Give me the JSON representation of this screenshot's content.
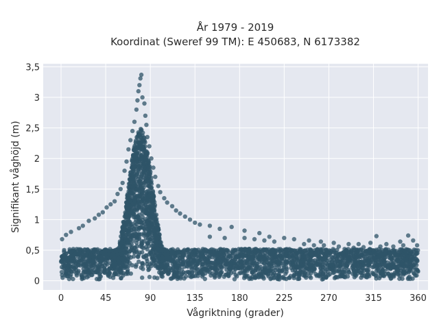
{
  "chart_data": {
    "type": "scatter",
    "title": "År 1979 - 2019",
    "subtitle": "Koordinat (Sweref 99 TM): E 450683, N 6173382",
    "xlabel": "Vågriktning (grader)",
    "ylabel": "Signifikant våghöjd (m)",
    "xlim": [
      -18,
      370
    ],
    "ylim": [
      -0.15,
      3.55
    ],
    "x_ticks": [
      0,
      45,
      90,
      135,
      180,
      225,
      270,
      315,
      360
    ],
    "x_tick_labels": [
      "0",
      "45",
      "90",
      "135",
      "180",
      "225",
      "270",
      "315",
      "360"
    ],
    "y_ticks": [
      0,
      0.5,
      1,
      1.5,
      2,
      2.5,
      3,
      3.5
    ],
    "y_tick_labels": [
      "0",
      "0,5",
      "1",
      "1,5",
      "2",
      "2,5",
      "3",
      "3,5"
    ],
    "grid": true,
    "plot_background": "#e5e8f0",
    "grid_color": "#ffffff",
    "marker_color": "#2f5468",
    "series": [
      {
        "points": [
          [
            81,
            3.37
          ],
          [
            80,
            3.31
          ],
          [
            79,
            3.2
          ],
          [
            78,
            3.1
          ],
          [
            82,
            3.0
          ],
          [
            77,
            2.95
          ],
          [
            84,
            2.9
          ],
          [
            76,
            2.8
          ],
          [
            85,
            2.7
          ],
          [
            74,
            2.6
          ],
          [
            86,
            2.55
          ],
          [
            72,
            2.45
          ],
          [
            87,
            2.35
          ],
          [
            70,
            2.3
          ],
          [
            89,
            2.2
          ],
          [
            68,
            2.15
          ],
          [
            91,
            2.0
          ],
          [
            66,
            1.95
          ],
          [
            93,
            1.85
          ],
          [
            64,
            1.8
          ],
          [
            95,
            1.7
          ],
          [
            62,
            1.6
          ],
          [
            98,
            1.55
          ],
          [
            60,
            1.5
          ],
          [
            100,
            1.45
          ],
          [
            57,
            1.42
          ],
          [
            104,
            1.35
          ],
          [
            54,
            1.3
          ],
          [
            107,
            1.28
          ],
          [
            50,
            1.25
          ],
          [
            112,
            1.22
          ],
          [
            46,
            1.2
          ],
          [
            116,
            1.15
          ],
          [
            42,
            1.12
          ],
          [
            120,
            1.1
          ],
          [
            38,
            1.08
          ],
          [
            125,
            1.05
          ],
          [
            34,
            1.02
          ],
          [
            130,
            1.0
          ],
          [
            28,
            0.98
          ],
          [
            135,
            0.95
          ],
          [
            22,
            0.9
          ],
          [
            140,
            0.92
          ],
          [
            18,
            0.86
          ],
          [
            150,
            0.9
          ],
          [
            10,
            0.8
          ],
          [
            160,
            0.85
          ],
          [
            5,
            0.75
          ],
          [
            172,
            0.88
          ],
          [
            1,
            0.68
          ],
          [
            185,
            0.82
          ],
          [
            200,
            0.78
          ],
          [
            210,
            0.72
          ],
          [
            225,
            0.7
          ],
          [
            235,
            0.68
          ],
          [
            250,
            0.66
          ],
          [
            262,
            0.64
          ],
          [
            275,
            0.62
          ],
          [
            290,
            0.6
          ],
          [
            300,
            0.6
          ],
          [
            312,
            0.62
          ],
          [
            318,
            0.73
          ],
          [
            328,
            0.6
          ],
          [
            342,
            0.64
          ],
          [
            350,
            0.74
          ],
          [
            355,
            0.66
          ],
          [
            359,
            0.58
          ],
          [
            358,
            0.5
          ],
          [
            150,
            0.72
          ],
          [
            165,
            0.7
          ],
          [
            185,
            0.7
          ],
          [
            195,
            0.68
          ],
          [
            205,
            0.66
          ],
          [
            215,
            0.64
          ],
          [
            245,
            0.6
          ],
          [
            255,
            0.58
          ],
          [
            265,
            0.58
          ],
          [
            280,
            0.56
          ],
          [
            295,
            0.54
          ],
          [
            305,
            0.55
          ],
          [
            322,
            0.56
          ],
          [
            335,
            0.56
          ],
          [
            345,
            0.58
          ]
        ]
      }
    ]
  }
}
